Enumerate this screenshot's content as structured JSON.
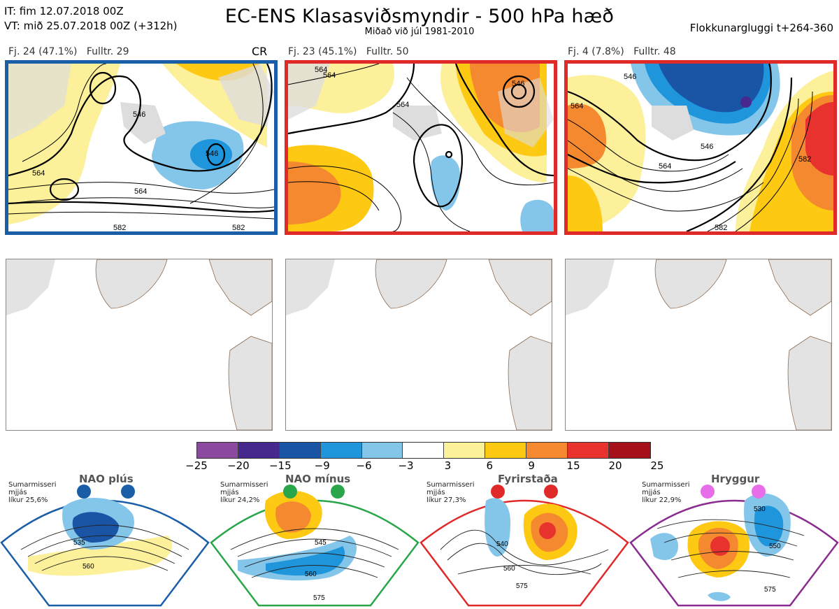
{
  "header": {
    "it_line": "IT: fim 12.07.2018 00Z",
    "vt_line": "VT: mið 25.07.2018 00Z  (+312h)",
    "title": "EC-ENS Klasasviðsmyndir - 500 hPa hæð",
    "subtitle": "Miðað við júl 1981-2010",
    "window": "Flokkunargluggi t+264-360"
  },
  "clusters": [
    {
      "label": "Fj. 24 (47.1%)",
      "rep": "Fulltr. 29",
      "tag": "CR",
      "frame_color": "#1b5ea8",
      "contours": [
        "546",
        "564",
        "546",
        "564",
        "582",
        "582"
      ]
    },
    {
      "label": "Fj. 23 (45.1%)",
      "rep": "Fulltr. 50",
      "tag": "",
      "frame_color": "#e02a2a",
      "contours": [
        "546",
        "564",
        "564",
        "564"
      ]
    },
    {
      "label": "Fj. 4 (7.8%)",
      "rep": "Fulltr. 48",
      "tag": "",
      "frame_color": "#e02a2a",
      "contours": [
        "546",
        "564",
        "546",
        "564",
        "582",
        "582"
      ]
    }
  ],
  "colorbar": {
    "colors": [
      "#8b4a9e",
      "#47288f",
      "#1a55a5",
      "#1f95db",
      "#84c5ea",
      "#ffffff",
      "#fdf09a",
      "#fdc913",
      "#f5892f",
      "#e8322e",
      "#a6101a"
    ],
    "ticks": [
      "−25",
      "−20",
      "−15",
      "−9",
      "−6",
      "−3",
      "3",
      "6",
      "9",
      "15",
      "20",
      "25"
    ]
  },
  "regimes": [
    {
      "name": "NAO plús",
      "info": [
        "Sumarmisseri",
        "mjjás",
        "líkur 25,6%"
      ],
      "frame_color": "#1b5ea8",
      "dot_color": "#1b5ea8",
      "contours": [
        "535",
        "560"
      ]
    },
    {
      "name": "NAO mínus",
      "info": [
        "Sumarmisseri",
        "mjjás",
        "líkur 24,2%"
      ],
      "frame_color": "#2aa64a",
      "dot_color": "#2aa64a",
      "contours": [
        "545",
        "560",
        "575"
      ]
    },
    {
      "name": "Fyrirstaða",
      "info": [
        "Sumarmisseri",
        "mjjás",
        "líkur 27,3%"
      ],
      "frame_color": "#e02a2a",
      "dot_color": "#e02a2a",
      "contours": [
        "540",
        "560",
        "575"
      ]
    },
    {
      "name": "Hryggur",
      "info": [
        "Sumarmisseri",
        "mjjás",
        "líkur 22,9%"
      ],
      "frame_color": "#8a2c8f",
      "dot_color": "#e86de8",
      "contours": [
        "530",
        "550",
        "575"
      ]
    }
  ]
}
